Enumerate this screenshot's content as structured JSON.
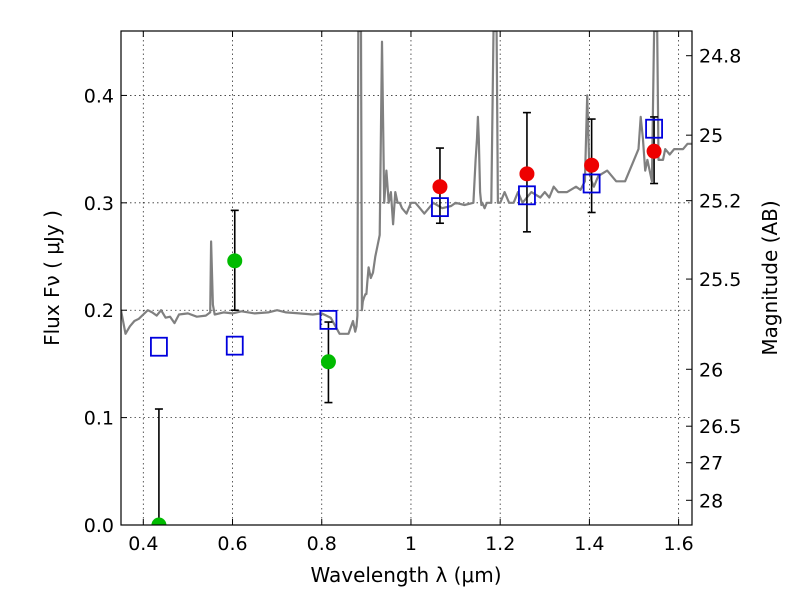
{
  "chart_data": {
    "type": "scatter",
    "title": "",
    "xlabel": "Wavelength  λ (μm)",
    "ylabel": "Flux  Fν  ( μJy )",
    "ylabel_right": "Magnitude (AB)",
    "xlim": [
      0.35,
      1.63
    ],
    "ylim": [
      0.0,
      0.46
    ],
    "grid": true,
    "x_ticks": [
      0.4,
      0.6,
      0.8,
      1.0,
      1.2,
      1.4,
      1.6
    ],
    "x_tick_labels": [
      "0.4",
      "0.6",
      "0.8",
      "1",
      "1.2",
      "1.4",
      "1.6"
    ],
    "y_ticks": [
      0.0,
      0.1,
      0.2,
      0.3,
      0.4
    ],
    "y_tick_labels": [
      "0.0",
      "0.1",
      "0.2",
      "0.3",
      "0.4"
    ],
    "right_ticks": [
      {
        "label": "24.8",
        "flux": 0.437
      },
      {
        "label": "25",
        "flux": 0.363
      },
      {
        "label": "25.2",
        "flux": 0.302
      },
      {
        "label": "25.5",
        "flux": 0.229
      },
      {
        "label": "26",
        "flux": 0.145
      },
      {
        "label": "26.5",
        "flux": 0.092
      },
      {
        "label": "27",
        "flux": 0.058
      },
      {
        "label": "28",
        "flux": 0.023
      }
    ],
    "series": [
      {
        "kind": "model_points",
        "marker": "open-square",
        "color": "#0000dd",
        "x": [
          0.435,
          0.605,
          0.815,
          1.065,
          1.26,
          1.405,
          1.545
        ],
        "y": [
          0.166,
          0.167,
          0.191,
          0.296,
          0.307,
          0.318,
          0.369
        ]
      },
      {
        "kind": "photometry_green",
        "marker": "circle",
        "color": "#00bb00",
        "x": [
          0.435,
          0.605,
          0.815
        ],
        "y": [
          0.0,
          0.246,
          0.152
        ],
        "yerr_low": [
          0.0,
          0.046,
          0.038
        ],
        "yerr_high": [
          0.108,
          0.047,
          0.037
        ]
      },
      {
        "kind": "photometry_red",
        "marker": "circle",
        "color": "#ee0000",
        "x": [
          1.065,
          1.26,
          1.405,
          1.545
        ],
        "y": [
          0.315,
          0.327,
          0.335,
          0.348
        ],
        "yerr_low": [
          0.034,
          0.054,
          0.044,
          0.03
        ],
        "yerr_high": [
          0.036,
          0.057,
          0.043,
          0.032
        ]
      },
      {
        "kind": "sed_spectrum",
        "line": true,
        "color": "#808080",
        "x": [
          0.35,
          0.36,
          0.37,
          0.38,
          0.39,
          0.4,
          0.41,
          0.42,
          0.43,
          0.44,
          0.45,
          0.46,
          0.47,
          0.48,
          0.5,
          0.52,
          0.54,
          0.55,
          0.552,
          0.556,
          0.56,
          0.58,
          0.6,
          0.62,
          0.65,
          0.68,
          0.7,
          0.72,
          0.75,
          0.78,
          0.8,
          0.82,
          0.84,
          0.86,
          0.87,
          0.875,
          0.878,
          0.88,
          0.882,
          0.885,
          0.888,
          0.89,
          0.892,
          0.895,
          0.898,
          0.9,
          0.902,
          0.905,
          0.91,
          0.915,
          0.92,
          0.925,
          0.93,
          0.935,
          0.94,
          0.945,
          0.95,
          0.955,
          0.96,
          0.965,
          0.97,
          0.975,
          0.98,
          0.99,
          1.0,
          1.01,
          1.02,
          1.03,
          1.05,
          1.07,
          1.09,
          1.1,
          1.12,
          1.14,
          1.145,
          1.148,
          1.15,
          1.152,
          1.155,
          1.158,
          1.16,
          1.165,
          1.17,
          1.18,
          1.185,
          1.188,
          1.19,
          1.192,
          1.195,
          1.2,
          1.21,
          1.22,
          1.23,
          1.24,
          1.25,
          1.27,
          1.29,
          1.3,
          1.31,
          1.32,
          1.33,
          1.35,
          1.37,
          1.38,
          1.39,
          1.395,
          1.4,
          1.405,
          1.41,
          1.42,
          1.44,
          1.46,
          1.48,
          1.5,
          1.51,
          1.515,
          1.52,
          1.525,
          1.53,
          1.54,
          1.545,
          1.548,
          1.55,
          1.552,
          1.555,
          1.56,
          1.565,
          1.57,
          1.58,
          1.59,
          1.6,
          1.61,
          1.62,
          1.63
        ],
        "y": [
          0.2,
          0.178,
          0.185,
          0.19,
          0.192,
          0.196,
          0.2,
          0.198,
          0.195,
          0.2,
          0.193,
          0.194,
          0.188,
          0.196,
          0.197,
          0.194,
          0.195,
          0.198,
          0.264,
          0.205,
          0.196,
          0.198,
          0.197,
          0.199,
          0.197,
          0.198,
          0.2,
          0.198,
          0.197,
          0.196,
          0.197,
          0.193,
          0.178,
          0.178,
          0.19,
          0.18,
          0.185,
          0.195,
          0.46,
          0.46,
          0.46,
          0.2,
          0.208,
          0.212,
          0.215,
          0.215,
          0.225,
          0.24,
          0.23,
          0.235,
          0.25,
          0.26,
          0.27,
          0.45,
          0.3,
          0.33,
          0.3,
          0.31,
          0.28,
          0.31,
          0.3,
          0.3,
          0.295,
          0.29,
          0.3,
          0.3,
          0.295,
          0.29,
          0.3,
          0.295,
          0.297,
          0.3,
          0.298,
          0.3,
          0.34,
          0.36,
          0.38,
          0.36,
          0.31,
          0.298,
          0.3,
          0.295,
          0.3,
          0.3,
          0.46,
          0.46,
          0.46,
          0.46,
          0.3,
          0.3,
          0.31,
          0.3,
          0.3,
          0.31,
          0.3,
          0.31,
          0.305,
          0.31,
          0.305,
          0.315,
          0.31,
          0.31,
          0.315,
          0.312,
          0.32,
          0.4,
          0.33,
          0.32,
          0.315,
          0.325,
          0.33,
          0.32,
          0.32,
          0.34,
          0.35,
          0.38,
          0.36,
          0.33,
          0.34,
          0.32,
          0.46,
          0.46,
          0.46,
          0.46,
          0.34,
          0.34,
          0.34,
          0.35,
          0.345,
          0.35,
          0.35,
          0.35,
          0.355,
          0.355
        ]
      }
    ]
  }
}
